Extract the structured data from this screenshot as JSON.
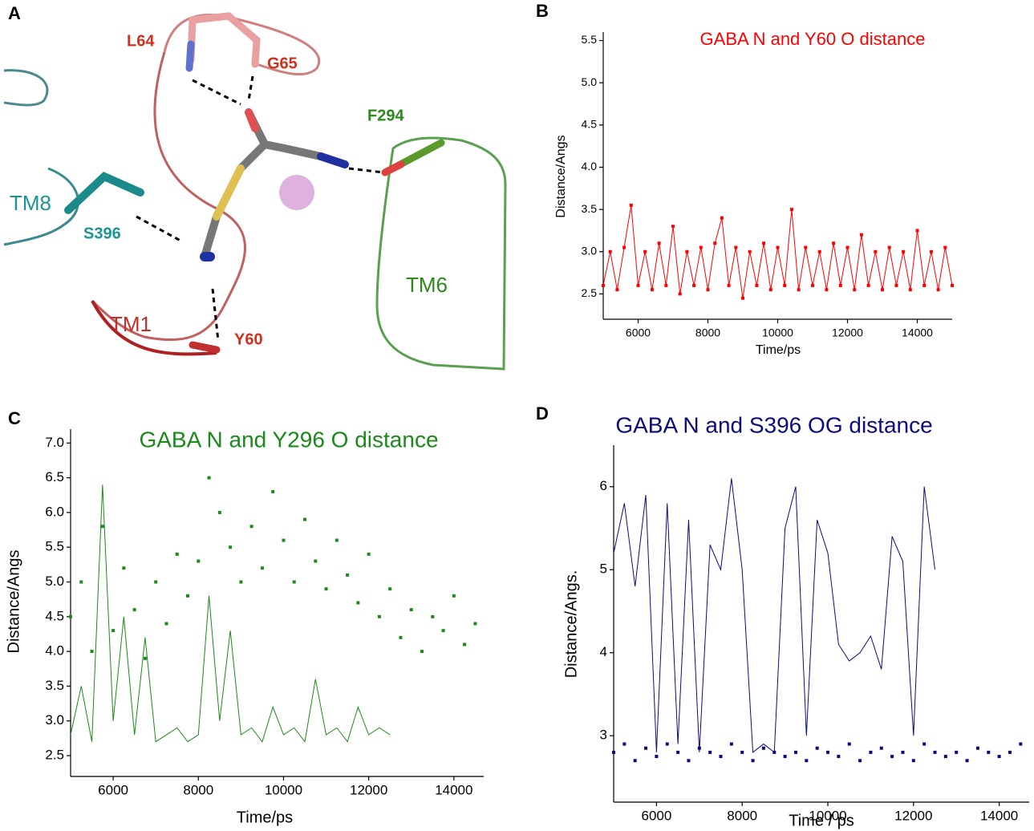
{
  "panel_a": {
    "label": "A",
    "residues": [
      "L64",
      "G65",
      "F294",
      "TM8",
      "S396",
      "TM6",
      "TM1",
      "Y60"
    ]
  },
  "chart_data": [
    {
      "type": "scatter",
      "panel_label": "B",
      "title": "GABA N and Y60 O distance",
      "x_label": "Time/ps",
      "y_label": "Distance/Angs",
      "xlim": [
        5000,
        15000
      ],
      "xticks": [
        6000,
        8000,
        10000,
        12000,
        14000
      ],
      "ylim": [
        2.2,
        5.6
      ],
      "yticks": [
        2.5,
        {
          "value": 3,
          "label": "3.0"
        },
        3.5,
        {
          "value": 4,
          "label": "4.0"
        },
        4.5,
        {
          "value": 5,
          "label": "5.0"
        },
        5.5
      ],
      "x": [
        5000,
        5200,
        5400,
        5600,
        5800,
        6000,
        6200,
        6400,
        6600,
        6800,
        7000,
        7200,
        7400,
        7600,
        7800,
        8000,
        8200,
        8400,
        8600,
        8800,
        9000,
        9200,
        9400,
        9600,
        9800,
        10000,
        10200,
        10400,
        10600,
        10800,
        11000,
        11200,
        11400,
        11600,
        11800,
        12000,
        12200,
        12400,
        12600,
        12800,
        13000,
        13200,
        13400,
        13600,
        13800,
        14000,
        14200,
        14400,
        14600,
        14800,
        15000
      ],
      "series": [
        {
          "color": "#ff0000",
          "style": "line+points",
          "values": [
            2.6,
            3.0,
            2.55,
            3.05,
            3.55,
            2.6,
            3.0,
            2.55,
            3.1,
            2.6,
            3.3,
            2.5,
            3.0,
            2.6,
            3.05,
            2.55,
            3.1,
            3.4,
            2.6,
            3.05,
            2.45,
            3.0,
            2.6,
            3.1,
            2.55,
            3.05,
            2.6,
            3.5,
            2.55,
            3.05,
            2.6,
            3.0,
            2.55,
            3.1,
            2.6,
            3.05,
            2.55,
            3.2,
            2.6,
            3.0,
            2.55,
            3.05,
            2.6,
            3.0,
            2.55,
            3.25,
            2.6,
            3.0,
            2.55,
            3.05,
            2.6
          ]
        }
      ]
    },
    {
      "type": "scatter",
      "panel_label": "C",
      "title": "GABA N and Y296 O distance",
      "x_label": "Time/ps",
      "y_label": "Distance/Angs",
      "xlim": [
        5000,
        14700
      ],
      "xticks": [
        6000,
        8000,
        10000,
        12000,
        14000
      ],
      "ylim": [
        2.2,
        7.2
      ],
      "yticks": [
        2.5,
        {
          "value": 3,
          "label": "3.0"
        },
        3.5,
        {
          "value": 4,
          "label": "4.0"
        },
        4.5,
        {
          "value": 5,
          "label": "5.0"
        },
        5.5,
        {
          "value": 6,
          "label": "6.0"
        },
        6.5,
        {
          "value": 7,
          "label": "7.0"
        }
      ],
      "x": [
        5000,
        5250,
        5500,
        5750,
        6000,
        6250,
        6500,
        6750,
        7000,
        7250,
        7500,
        7750,
        8000,
        8250,
        8500,
        8750,
        9000,
        9250,
        9500,
        9750,
        10000,
        10250,
        10500,
        10750,
        11000,
        11250,
        11500,
        11750,
        12000,
        12250,
        12500,
        12750,
        13000,
        13250,
        13500,
        13750,
        14000,
        14250,
        14500
      ],
      "series": [
        {
          "color": "#1a8a1a",
          "style": "line",
          "values": [
            2.8,
            3.5,
            2.7,
            6.4,
            3.0,
            4.5,
            2.8,
            4.2,
            2.7,
            2.8,
            2.9,
            2.7,
            2.8,
            4.8,
            3.0,
            4.3,
            2.8,
            2.9,
            2.7,
            3.2,
            2.8,
            2.9,
            2.7,
            3.6,
            2.8,
            2.9,
            2.7,
            3.2,
            2.8,
            2.9,
            2.8,
            null,
            null,
            null,
            null,
            null,
            null,
            null,
            null
          ]
        },
        {
          "color": "#1a8a1a",
          "style": "points",
          "values": [
            4.5,
            5.0,
            4.0,
            5.8,
            4.3,
            5.2,
            4.6,
            3.9,
            5.0,
            4.4,
            5.4,
            4.8,
            5.3,
            6.5,
            6.0,
            5.5,
            5.0,
            5.8,
            5.2,
            6.3,
            5.6,
            5.0,
            5.9,
            5.3,
            4.9,
            5.6,
            5.1,
            4.7,
            5.4,
            4.5,
            4.9,
            4.2,
            4.6,
            4.0,
            4.5,
            4.3,
            4.8,
            4.1,
            4.4
          ]
        }
      ]
    },
    {
      "type": "scatter",
      "panel_label": "D",
      "title": "GABA N and S396 OG distance",
      "x_label": "Time / ps",
      "y_label": "Distance/Angs.",
      "xlim": [
        5000,
        14700
      ],
      "xticks": [
        6000,
        8000,
        10000,
        12000,
        14000
      ],
      "ylim": [
        2.2,
        6.5
      ],
      "yticks": [
        3,
        4,
        5,
        6
      ],
      "x": [
        5000,
        5250,
        5500,
        5750,
        6000,
        6250,
        6500,
        6750,
        7000,
        7250,
        7500,
        7750,
        8000,
        8250,
        8500,
        8750,
        9000,
        9250,
        9500,
        9750,
        10000,
        10250,
        10500,
        10750,
        11000,
        11250,
        11500,
        11750,
        12000,
        12250,
        12500,
        12750,
        13000,
        13250,
        13500,
        13750,
        14000,
        14250,
        14500
      ],
      "series": [
        {
          "color": "#0b0b80",
          "style": "line",
          "values": [
            5.2,
            5.8,
            4.8,
            5.9,
            2.8,
            5.8,
            2.9,
            5.6,
            2.8,
            5.3,
            5.0,
            6.1,
            5.0,
            2.8,
            2.9,
            2.8,
            5.5,
            6.0,
            3.0,
            5.6,
            5.2,
            4.1,
            3.9,
            4.0,
            4.2,
            3.8,
            5.4,
            5.1,
            3.0,
            6.0,
            5.0,
            null,
            null,
            null,
            null,
            null,
            null,
            null,
            null
          ]
        },
        {
          "color": "#0b0b80",
          "style": "points",
          "values": [
            2.8,
            2.9,
            2.7,
            2.85,
            2.75,
            2.9,
            2.8,
            2.7,
            2.85,
            2.8,
            2.75,
            2.9,
            2.8,
            2.7,
            2.85,
            2.8,
            2.75,
            2.8,
            2.7,
            2.85,
            2.8,
            2.75,
            2.9,
            2.7,
            2.8,
            2.85,
            2.75,
            2.8,
            2.7,
            2.9,
            2.8,
            2.75,
            2.8,
            2.7,
            2.85,
            2.8,
            2.75,
            2.8,
            2.9
          ]
        }
      ]
    }
  ]
}
